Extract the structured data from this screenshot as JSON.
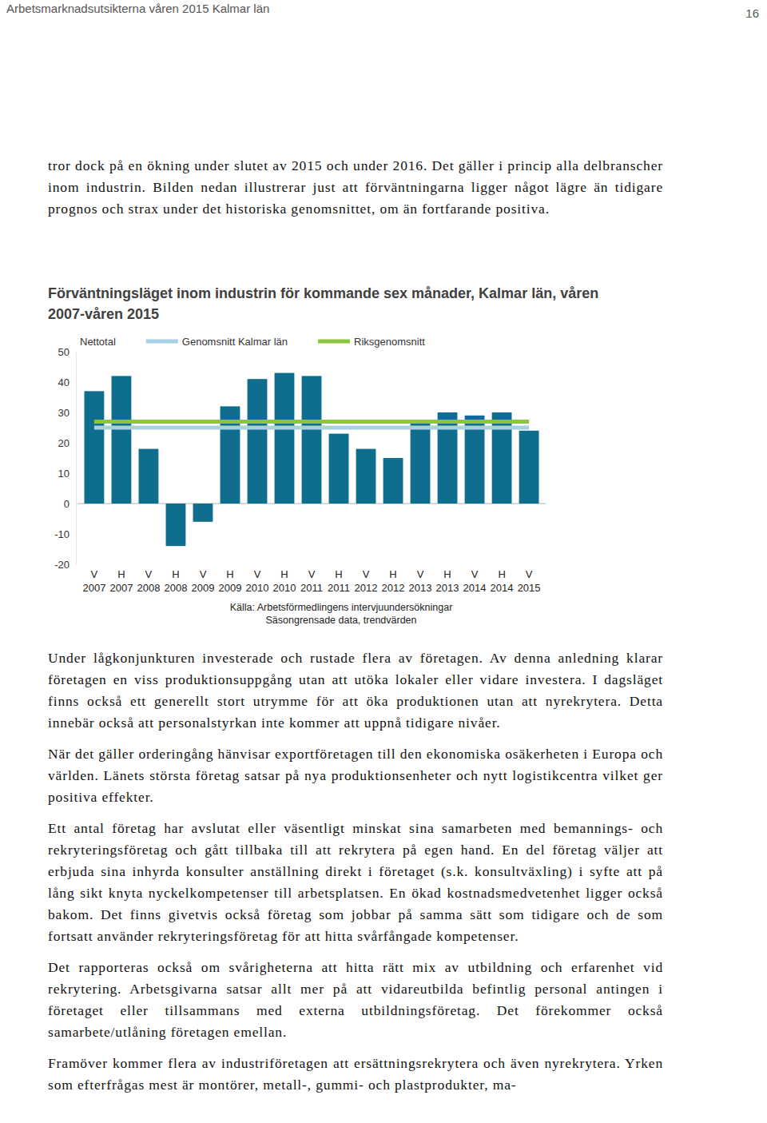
{
  "header": {
    "title": "Arbetsmarknadsutsikterna våren 2015 Kalmar län",
    "page_number": "16"
  },
  "body": {
    "paragraphs_before": [
      "tror dock på en ökning under slutet av 2015 och under 2016. Det gäller i princip alla delbranscher inom industrin. Bilden nedan illustrerar just att förväntningarna ligger något lägre än tidigare prognos och strax under det historiska genomsnittet, om än fortfarande positiva."
    ],
    "paragraphs_after": [
      "Under lågkonjunkturen investerade och rustade flera av företagen. Av denna anledning klarar företagen en viss produktionsuppgång utan att utöka lokaler eller vidare investera. I dagsläget finns också ett generellt stort utrymme för att öka produktionen utan att nyrekrytera. Detta innebär också att personalstyrkan inte kommer att uppnå tidigare nivåer.",
      "När det gäller orderingång hänvisar exportföretagen till den ekonomiska osäkerheten i Europa och världen. Länets största företag satsar på nya produktionsenheter och nytt logistikcentra vilket ger positiva effekter.",
      "Ett antal företag har avslutat eller väsentligt minskat sina samarbeten med bemannings- och rekryteringsföretag och gått tillbaka till att rekrytera på egen hand. En del företag väljer att erbjuda sina inhyrda konsulter anställning direkt i företaget (s.k. konsultväxling) i syfte att på lång sikt knyta nyckelkompetenser till arbetsplatsen. En ökad kostnadsmedvetenhet ligger också bakom. Det finns givetvis också företag som jobbar på samma sätt som tidigare och de som fortsatt använder rekryteringsföretag för att hitta svårfångade kompetenser.",
      "Det rapporteras också om svårigheterna att hitta rätt mix av utbildning och erfarenhet vid rekrytering. Arbetsgivarna satsar allt mer på att vidareutbilda befintlig personal antingen i företaget eller tillsammans med externa utbildningsföretag. Det förekommer också samarbete/utlåning företagen emellan.",
      "Framöver kommer flera av industriföretagen att ersättningsrekrytera och även nyrekrytera. Yrken som efterfrågas mest är montörer, metall-, gummi- och plastprodukter, ma-"
    ]
  },
  "chart_data": {
    "type": "bar",
    "title": "Förväntningsläget inom industrin för kommande sex månader, Kalmar län, våren 2007-våren 2015",
    "categories": [
      "V 2007",
      "H 2007",
      "V 2008",
      "H 2008",
      "V 2009",
      "H 2009",
      "V 2010",
      "H 2010",
      "V 2011",
      "H 2011",
      "V 2012",
      "H 2012",
      "V 2013",
      "H 2013",
      "V 2014",
      "H 2014",
      "V 2015"
    ],
    "series": [
      {
        "name": "Nettotal",
        "type": "bar",
        "color": "#0f6e8e",
        "values": [
          37,
          42,
          18,
          -14,
          -6,
          32,
          41,
          43,
          42,
          23,
          18,
          15,
          27,
          30,
          29,
          30,
          24
        ]
      },
      {
        "name": "Genomsnitt Kalmar län",
        "type": "line",
        "color": "#a8cfe3",
        "values": [
          25,
          25,
          25,
          25,
          25,
          25,
          25,
          25,
          25,
          25,
          25,
          25,
          25,
          25,
          25,
          25,
          25
        ]
      },
      {
        "name": "Riksgenomsnitt",
        "type": "line",
        "color": "#8cc63f",
        "values": [
          27,
          27,
          27,
          27,
          27,
          27,
          27,
          27,
          27,
          27,
          27,
          27,
          27,
          27,
          27,
          27,
          27
        ]
      }
    ],
    "ylim": [
      -20,
      50
    ],
    "yticks": [
      -20,
      -10,
      0,
      10,
      20,
      30,
      40,
      50
    ],
    "grid": false,
    "legend": "top",
    "notes": [
      "Källa: Arbetsförmedlingens intervjuundersökningar",
      "Säsongrensade data, trendvärden"
    ]
  }
}
